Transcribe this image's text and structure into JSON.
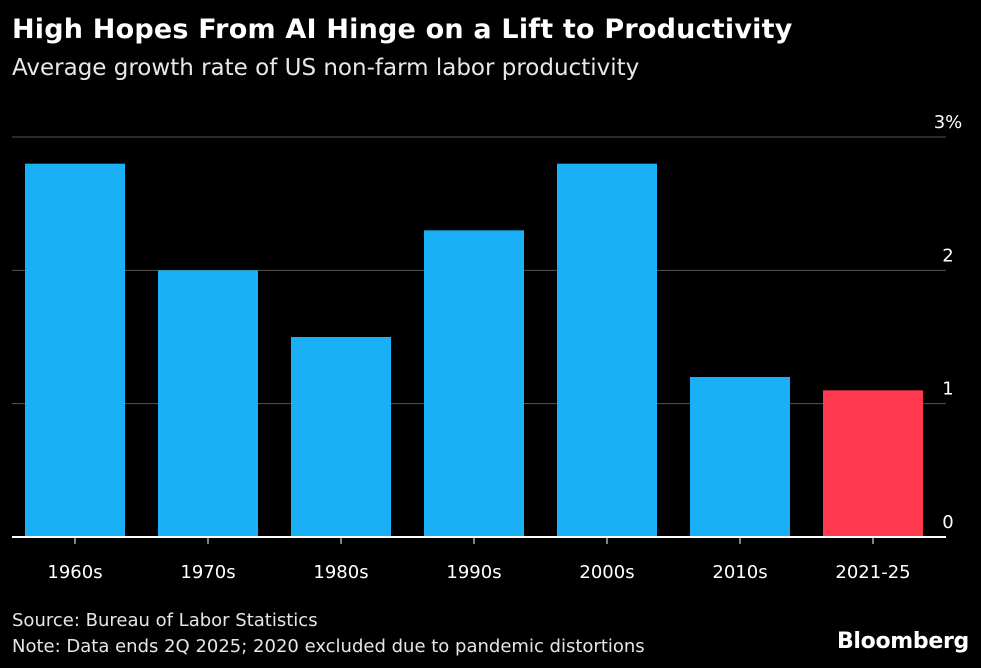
{
  "title": "High Hopes From AI Hinge on a Lift to Productivity",
  "subtitle": "Average growth rate of US non-farm labor productivity",
  "source": "Source: Bureau of Labor Statistics",
  "note": "Note: Data ends 2Q 2025; 2020 excluded due to pandemic distortions",
  "brand": "Bloomberg",
  "colors": {
    "background": "#000000",
    "bar": "#1ab0f5",
    "highlight": "#ff3a4f",
    "gridline": "#555555",
    "text": "#ffffff"
  },
  "chart_data": {
    "type": "bar",
    "categories": [
      "1960s",
      "1970s",
      "1980s",
      "1990s",
      "2000s",
      "2010s",
      "2021-25"
    ],
    "values": [
      2.8,
      2.0,
      1.5,
      2.3,
      2.8,
      1.2,
      1.1
    ],
    "highlighted": [
      "2021-25"
    ],
    "ylim": [
      0,
      3
    ],
    "yticks": [
      0,
      1,
      2,
      3
    ],
    "ytick_labels": [
      "0",
      "1",
      "2",
      "3%"
    ],
    "y_axis_side": "right",
    "grid": true,
    "xlabel": "",
    "ylabel": ""
  }
}
